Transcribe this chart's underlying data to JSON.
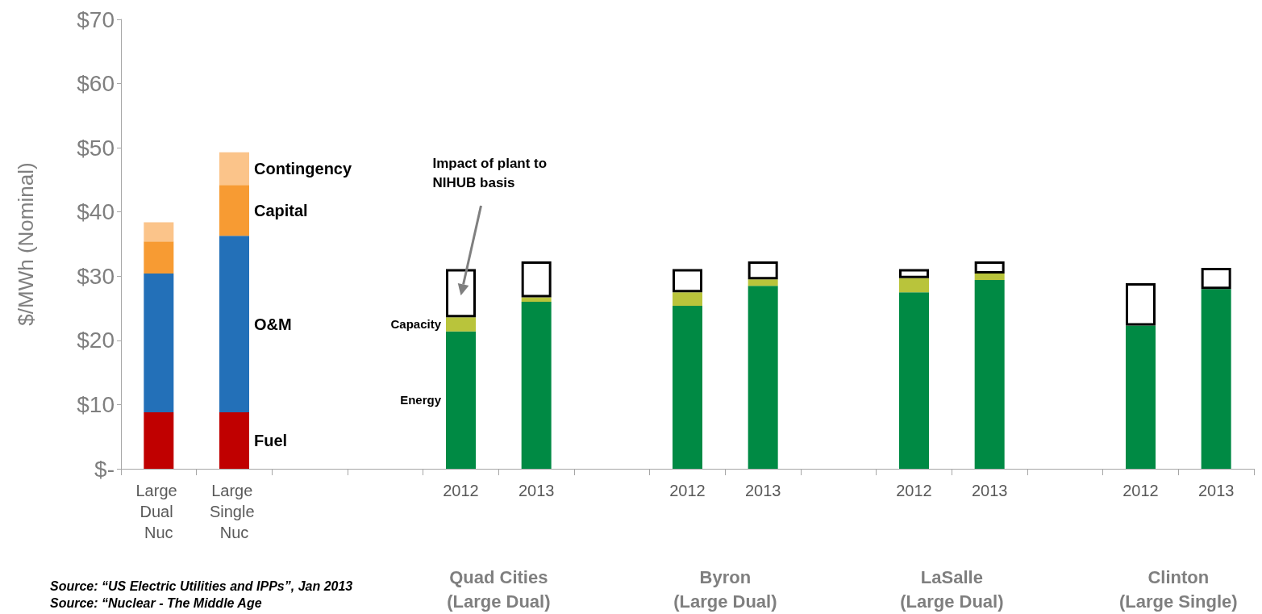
{
  "chart_data": {
    "type": "bar",
    "stacked": true,
    "ylabel": "$/MWh (Nominal)",
    "categories": [
      "Large Dual Nuc",
      "Large Single Nuc",
      null,
      null,
      "2012",
      "2013",
      null,
      "2012",
      "2013",
      null,
      "2012",
      "2013",
      null,
      "2012",
      "2013"
    ],
    "series": [
      {
        "name": "Fuel",
        "color": "#c00000",
        "values": [
          8.8,
          8.8,
          null,
          null,
          null,
          null,
          null,
          null,
          null,
          null,
          null,
          null,
          null,
          null,
          null
        ]
      },
      {
        "name": "O&M",
        "color": "#2370b8",
        "values": [
          21.6,
          27.5,
          null,
          null,
          null,
          null,
          null,
          null,
          null,
          null,
          null,
          null,
          null,
          null,
          null
        ]
      },
      {
        "name": "Capital",
        "color": "#f79b33",
        "values": [
          5.0,
          7.9,
          null,
          null,
          null,
          null,
          null,
          null,
          null,
          null,
          null,
          null,
          null,
          null,
          null
        ]
      },
      {
        "name": "Contingency",
        "color": "#fbc48a",
        "values": [
          3.0,
          5.1,
          null,
          null,
          null,
          null,
          null,
          null,
          null,
          null,
          null,
          null,
          null,
          null,
          null
        ]
      },
      {
        "name": "Energy",
        "color": "#008a44",
        "values": [
          null,
          null,
          null,
          null,
          21.4,
          26.0,
          null,
          25.4,
          28.5,
          null,
          27.5,
          29.4,
          null,
          22.3,
          28.0
        ]
      },
      {
        "name": "Capacity",
        "color": "#b9c43b",
        "values": [
          null,
          null,
          null,
          null,
          2.2,
          0.7,
          null,
          2.1,
          1.0,
          null,
          2.2,
          1.0,
          null,
          null,
          null
        ]
      },
      {
        "color": "#ffffff",
        "values": [
          null,
          null,
          null,
          null,
          7.5,
          5.6,
          null,
          3.6,
          2.8,
          null,
          1.4,
          1.9,
          null,
          6.6,
          3.3
        ]
      }
    ],
    "ylim": [
      0,
      70
    ],
    "yticks": [
      {
        "value": 0,
        "label": "$-"
      },
      {
        "value": 10,
        "label": "$10"
      },
      {
        "value": 20,
        "label": "$20"
      },
      {
        "value": 30,
        "label": "$30"
      },
      {
        "value": 40,
        "label": "$40"
      },
      {
        "value": 50,
        "label": "$50"
      },
      {
        "value": 60,
        "label": "$60"
      },
      {
        "value": 70,
        "label": "$70"
      }
    ],
    "grid": false,
    "legend": false,
    "annotations": [
      "Impact of plant to\nNIHUB basis",
      "Quad Cities\n(Large Dual)",
      "Byron\n(Large Dual)",
      "LaSalle\n(Large Dual)",
      "Clinton\n(Large Single)",
      "Source: “US Electric Utilities and IPPs”, Jan 2013",
      "Source: “Nuclear - The Middle Age"
    ]
  }
}
